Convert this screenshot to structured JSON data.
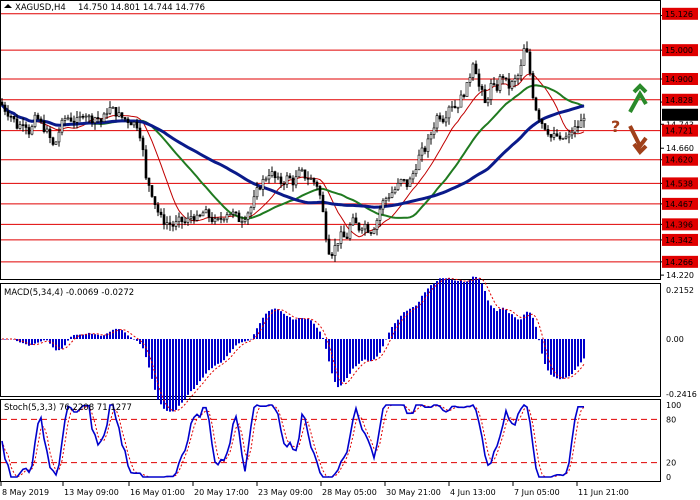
{
  "header": {
    "symbol": "XAGUSD,H4",
    "ohlc": "14.750 14.801 14.744 14.776"
  },
  "price_axis": {
    "ticks": [
      "15.120",
      "15.000",
      "14.900",
      "14.820",
      "14.743",
      "14.660",
      "14.620",
      "14.538",
      "14.467",
      "14.396",
      "14.342",
      "14.266",
      "14.220"
    ],
    "current_price": "14.776"
  },
  "levels": [
    {
      "value": 15.126,
      "label": "15.126"
    },
    {
      "value": 15.0,
      "label": "15.000"
    },
    {
      "value": 14.9,
      "label": "14.900"
    },
    {
      "value": 14.828,
      "label": "14.828"
    },
    {
      "value": 14.721,
      "label": "14.721"
    },
    {
      "value": 14.62,
      "label": "14.620"
    },
    {
      "value": 14.538,
      "label": "14.538"
    },
    {
      "value": 14.467,
      "label": "14.467"
    },
    {
      "value": 14.396,
      "label": "14.396"
    },
    {
      "value": 14.342,
      "label": "14.342"
    },
    {
      "value": 14.266,
      "label": "14.266"
    }
  ],
  "level_color": "#e00000",
  "arrows": {
    "up_color": "#2a8a2a",
    "down_color": "#a0401a",
    "question_color": "#a0401a",
    "question_text": "?"
  },
  "macd": {
    "title": "MACD(5,34,4) -0.0069 -0.0272",
    "axis_ticks": [
      "0.2152",
      "0.00",
      "-0.2416"
    ],
    "bar_color": "#0000cc",
    "signal_color": "#e00000"
  },
  "stoch": {
    "title": "Stoch(5,3,3) 76.2208 71.1277",
    "axis_ticks": [
      "100",
      "80",
      "20",
      "0"
    ],
    "main_color": "#0000cc",
    "signal_color": "#e00000"
  },
  "time_axis": {
    "labels": [
      "8 May 2019",
      "13 May 09:00",
      "16 May 01:00",
      "20 May 17:00",
      "23 May 09:00",
      "28 May 05:00",
      "30 May 21:00",
      "4 Jun 13:00",
      "7 Jun 05:00",
      "11 Jun 21:00"
    ]
  },
  "chart_data": {
    "type": "candlestick",
    "symbol": "XAGUSD",
    "timeframe": "H4",
    "last_ohlc": {
      "open": 14.75,
      "high": 14.801,
      "low": 14.744,
      "close": 14.776
    },
    "price_range": [
      14.21,
      15.16
    ],
    "close_path": [
      [
        0,
        14.82
      ],
      [
        6,
        14.79
      ],
      [
        12,
        14.77
      ],
      [
        18,
        14.73
      ],
      [
        24,
        14.76
      ],
      [
        30,
        14.71
      ],
      [
        36,
        14.77
      ],
      [
        42,
        14.74
      ],
      [
        48,
        14.71
      ],
      [
        54,
        14.66
      ],
      [
        60,
        14.73
      ],
      [
        66,
        14.77
      ],
      [
        72,
        14.76
      ],
      [
        78,
        14.75
      ],
      [
        84,
        14.79
      ],
      [
        90,
        14.76
      ],
      [
        96,
        14.77
      ],
      [
        102,
        14.75
      ],
      [
        108,
        14.8
      ],
      [
        114,
        14.79
      ],
      [
        120,
        14.77
      ],
      [
        126,
        14.76
      ],
      [
        132,
        14.75
      ],
      [
        138,
        14.74
      ],
      [
        142,
        14.68
      ],
      [
        146,
        14.55
      ],
      [
        150,
        14.53
      ],
      [
        154,
        14.48
      ],
      [
        158,
        14.44
      ],
      [
        162,
        14.41
      ],
      [
        168,
        14.4
      ],
      [
        174,
        14.39
      ],
      [
        180,
        14.41
      ],
      [
        186,
        14.4
      ],
      [
        192,
        14.43
      ],
      [
        198,
        14.41
      ],
      [
        204,
        14.44
      ],
      [
        210,
        14.42
      ],
      [
        216,
        14.4
      ],
      [
        222,
        14.42
      ],
      [
        228,
        14.44
      ],
      [
        234,
        14.43
      ],
      [
        240,
        14.41
      ],
      [
        246,
        14.43
      ],
      [
        252,
        14.46
      ],
      [
        258,
        14.52
      ],
      [
        264,
        14.55
      ],
      [
        270,
        14.58
      ],
      [
        276,
        14.55
      ],
      [
        282,
        14.54
      ],
      [
        288,
        14.56
      ],
      [
        294,
        14.54
      ],
      [
        300,
        14.58
      ],
      [
        306,
        14.56
      ],
      [
        312,
        14.55
      ],
      [
        318,
        14.53
      ],
      [
        322,
        14.46
      ],
      [
        326,
        14.36
      ],
      [
        330,
        14.29
      ],
      [
        334,
        14.31
      ],
      [
        338,
        14.34
      ],
      [
        342,
        14.36
      ],
      [
        346,
        14.34
      ],
      [
        350,
        14.39
      ],
      [
        354,
        14.41
      ],
      [
        358,
        14.38
      ],
      [
        364,
        14.4
      ],
      [
        370,
        14.37
      ],
      [
        376,
        14.4
      ],
      [
        380,
        14.45
      ],
      [
        384,
        14.48
      ],
      [
        390,
        14.5
      ],
      [
        396,
        14.52
      ],
      [
        402,
        14.55
      ],
      [
        408,
        14.53
      ],
      [
        414,
        14.58
      ],
      [
        420,
        14.64
      ],
      [
        426,
        14.66
      ],
      [
        432,
        14.72
      ],
      [
        438,
        14.78
      ],
      [
        444,
        14.76
      ],
      [
        450,
        14.82
      ],
      [
        456,
        14.8
      ],
      [
        462,
        14.84
      ],
      [
        468,
        14.88
      ],
      [
        474,
        14.98
      ],
      [
        478,
        14.88
      ],
      [
        482,
        14.85
      ],
      [
        486,
        14.8
      ],
      [
        490,
        14.88
      ],
      [
        496,
        14.86
      ],
      [
        502,
        14.92
      ],
      [
        508,
        14.87
      ],
      [
        514,
        14.89
      ],
      [
        520,
        14.92
      ],
      [
        524,
        15.0
      ],
      [
        528,
        14.98
      ],
      [
        532,
        14.86
      ],
      [
        536,
        14.8
      ],
      [
        540,
        14.76
      ],
      [
        544,
        14.74
      ],
      [
        548,
        14.72
      ],
      [
        552,
        14.69
      ],
      [
        556,
        14.71
      ],
      [
        560,
        14.68
      ],
      [
        564,
        14.7
      ],
      [
        568,
        14.69
      ],
      [
        572,
        14.72
      ],
      [
        576,
        14.73
      ],
      [
        580,
        14.74
      ],
      [
        584,
        14.776
      ]
    ],
    "indicators": {
      "macd": {
        "params": "5,34,4",
        "main": -0.0069,
        "signal": -0.0272
      },
      "stochastic": {
        "params": "5,3,3",
        "k": 76.2208,
        "d": 71.1277
      }
    }
  }
}
